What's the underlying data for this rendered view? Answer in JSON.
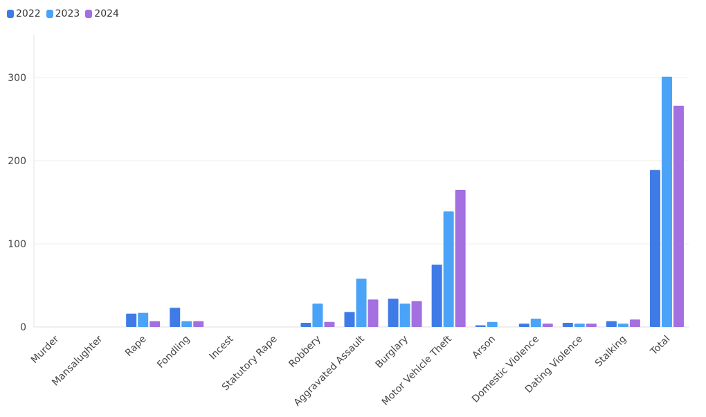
{
  "chart_data": {
    "type": "bar",
    "categories": [
      "Murder",
      "Mansalughter",
      "Rape",
      "Fondling",
      "Incest",
      "Statutory Rape",
      "Robbery",
      "Aggravated Assault",
      "Burglary",
      "Motor Vehicle Theft",
      "Arson",
      "Domestic Violence",
      "Dating Violence",
      "Stalking",
      "Total"
    ],
    "series": [
      {
        "name": "2022",
        "color": "#3f7be6",
        "values": [
          0,
          0,
          16,
          23,
          0,
          0,
          5,
          18,
          34,
          75,
          2,
          4,
          5,
          7,
          189
        ]
      },
      {
        "name": "2023",
        "color": "#4ba3f7",
        "values": [
          0,
          0,
          17,
          7,
          0,
          0,
          28,
          58,
          28,
          139,
          6,
          10,
          4,
          4,
          301
        ]
      },
      {
        "name": "2024",
        "color": "#a46fe0",
        "values": [
          0,
          0,
          7,
          7,
          0,
          0,
          6,
          33,
          31,
          165,
          0,
          4,
          4,
          9,
          266
        ]
      }
    ],
    "yticks": [
      0,
      100,
      200,
      300
    ],
    "ylim": [
      0,
      350
    ],
    "grid": true,
    "legend_position": "top-left"
  }
}
